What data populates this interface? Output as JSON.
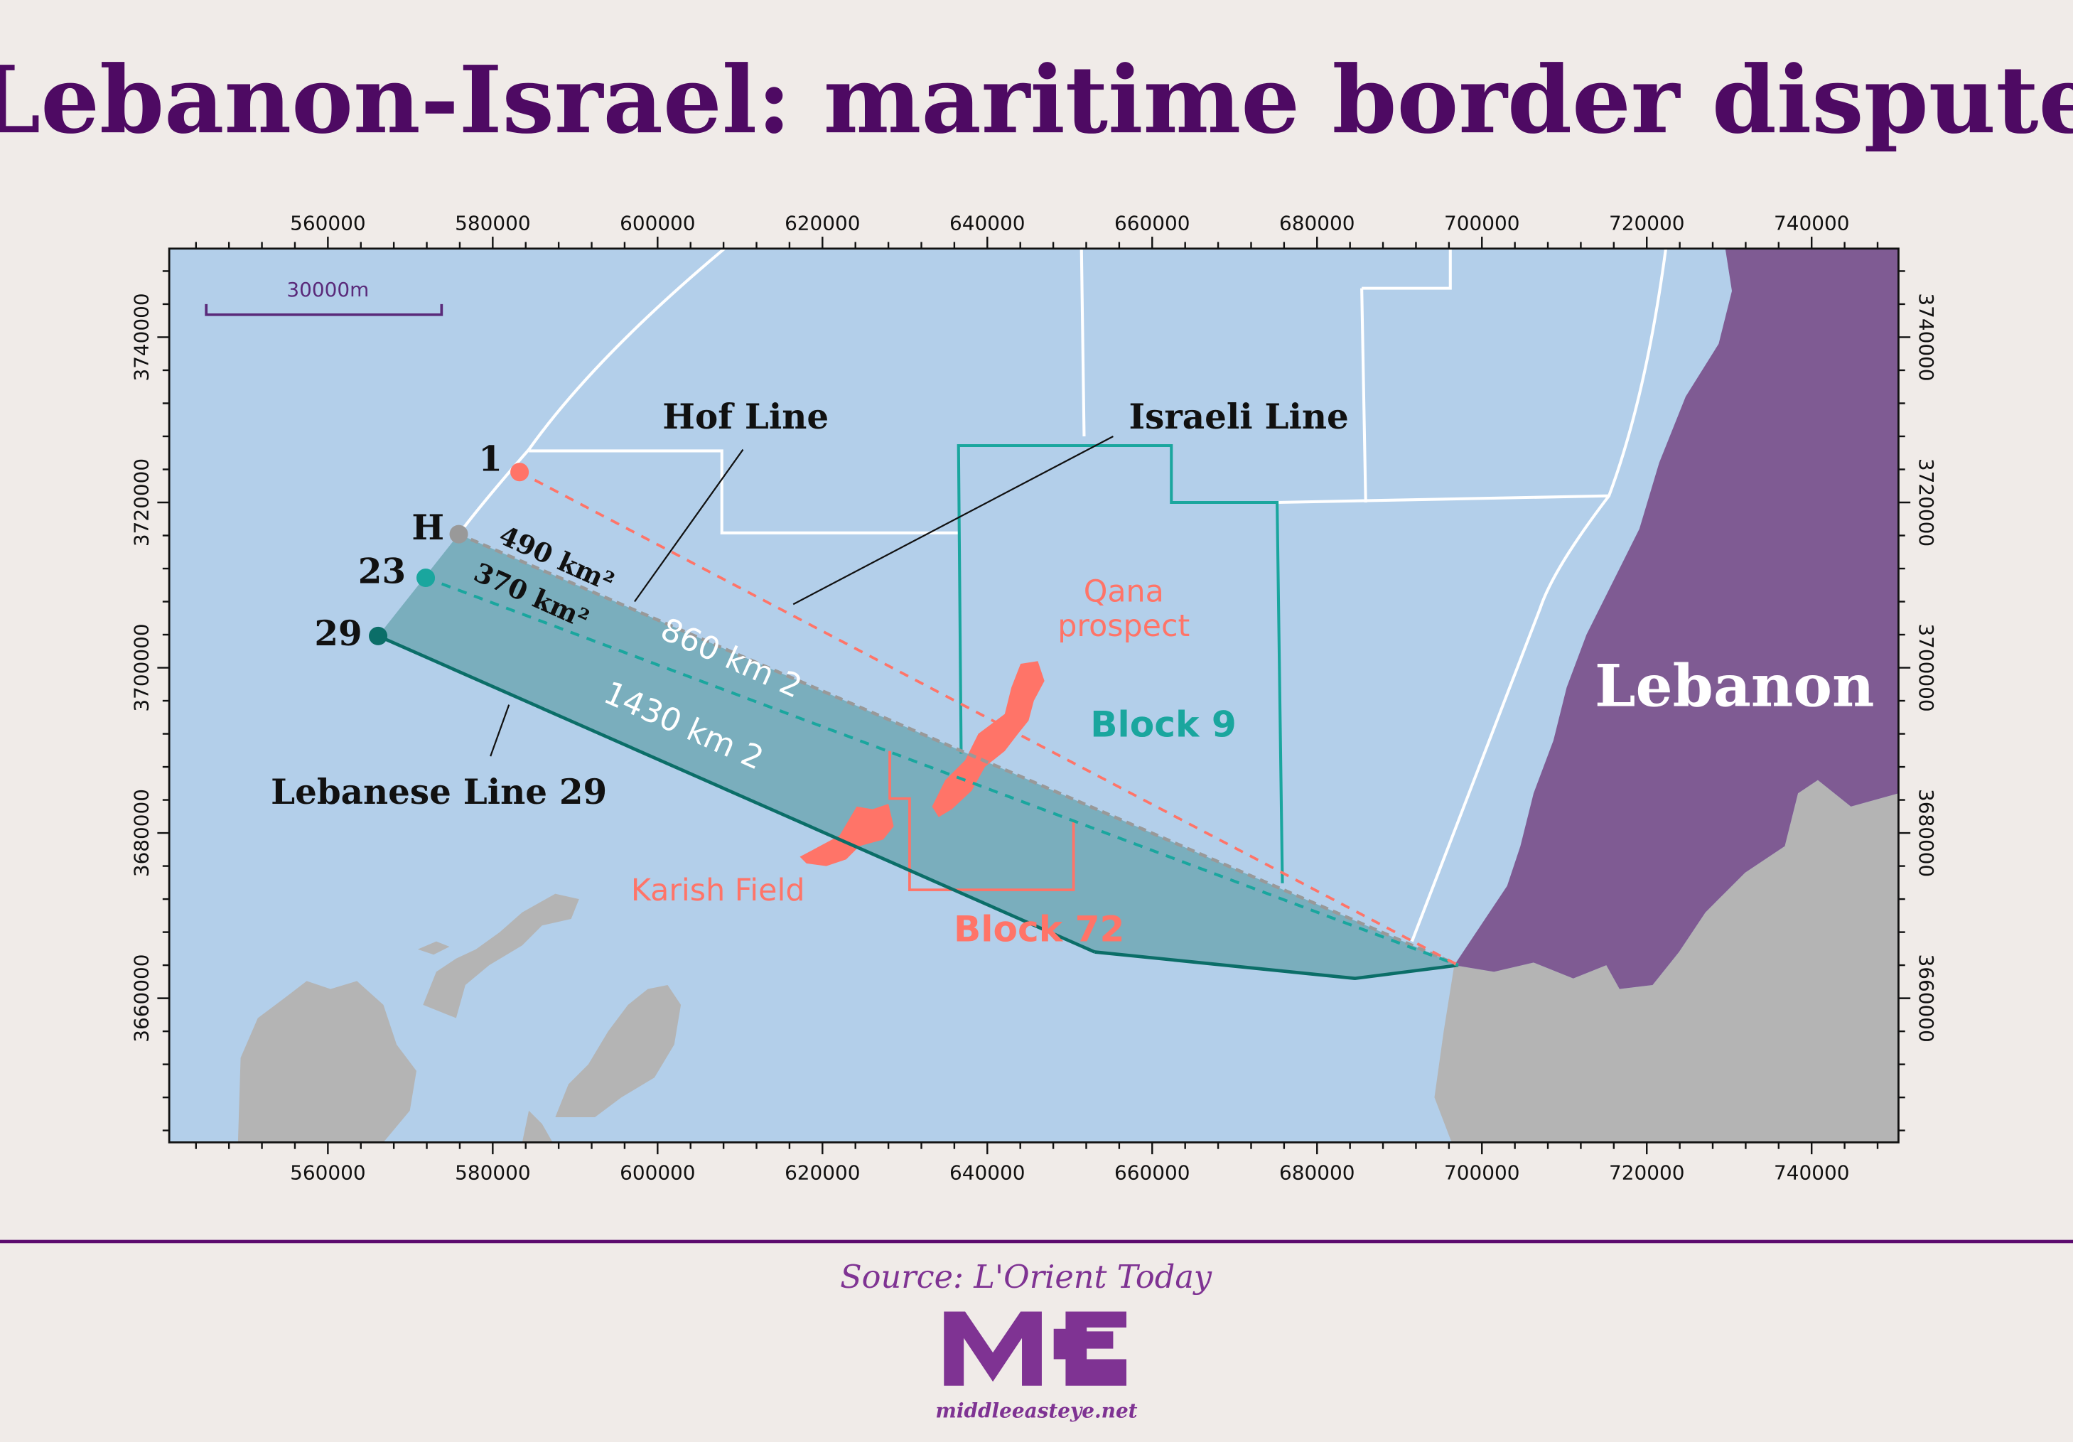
{
  "title": "Lebanon-Israel: maritime border dispute",
  "map": {
    "x_ticks": [
      "560000",
      "580000",
      "600000",
      "620000",
      "640000",
      "660000",
      "680000",
      "700000",
      "720000",
      "740000"
    ],
    "y_ticks": [
      "3740000",
      "3720000",
      "3700000",
      "3680000",
      "3660000"
    ],
    "scale_bar": "30000m",
    "points": {
      "p1": "1",
      "pH": "H",
      "p23": "23",
      "p29": "29"
    },
    "labels": {
      "hof_line": "Hof Line",
      "israeli_line": "Israeli Line",
      "lebanese_line": "Lebanese Line 29",
      "area_490": "490 km²",
      "area_370": "370 km²",
      "area_860": "860 km 2",
      "area_1430": "1430 km 2",
      "qana_1": "Qana",
      "qana_2": "prospect",
      "block9": "Block 9",
      "block72": "Block 72",
      "karish": "Karish Field",
      "lebanon": "Lebanon"
    },
    "colors": {
      "sea": "#b3cfea",
      "disputed_area": "#7aaebd",
      "lebanon": "#7f5b93",
      "land": "#b4b4b4",
      "line_1": "#ff7468",
      "line_23": "#1aa69e",
      "line_29": "#0b6e68",
      "hof_line": "#999999",
      "fields": "#ff7468"
    }
  },
  "footer": {
    "source": "Source: L'Orient Today",
    "logo": "MEE",
    "site": "middleeasteye.net"
  }
}
